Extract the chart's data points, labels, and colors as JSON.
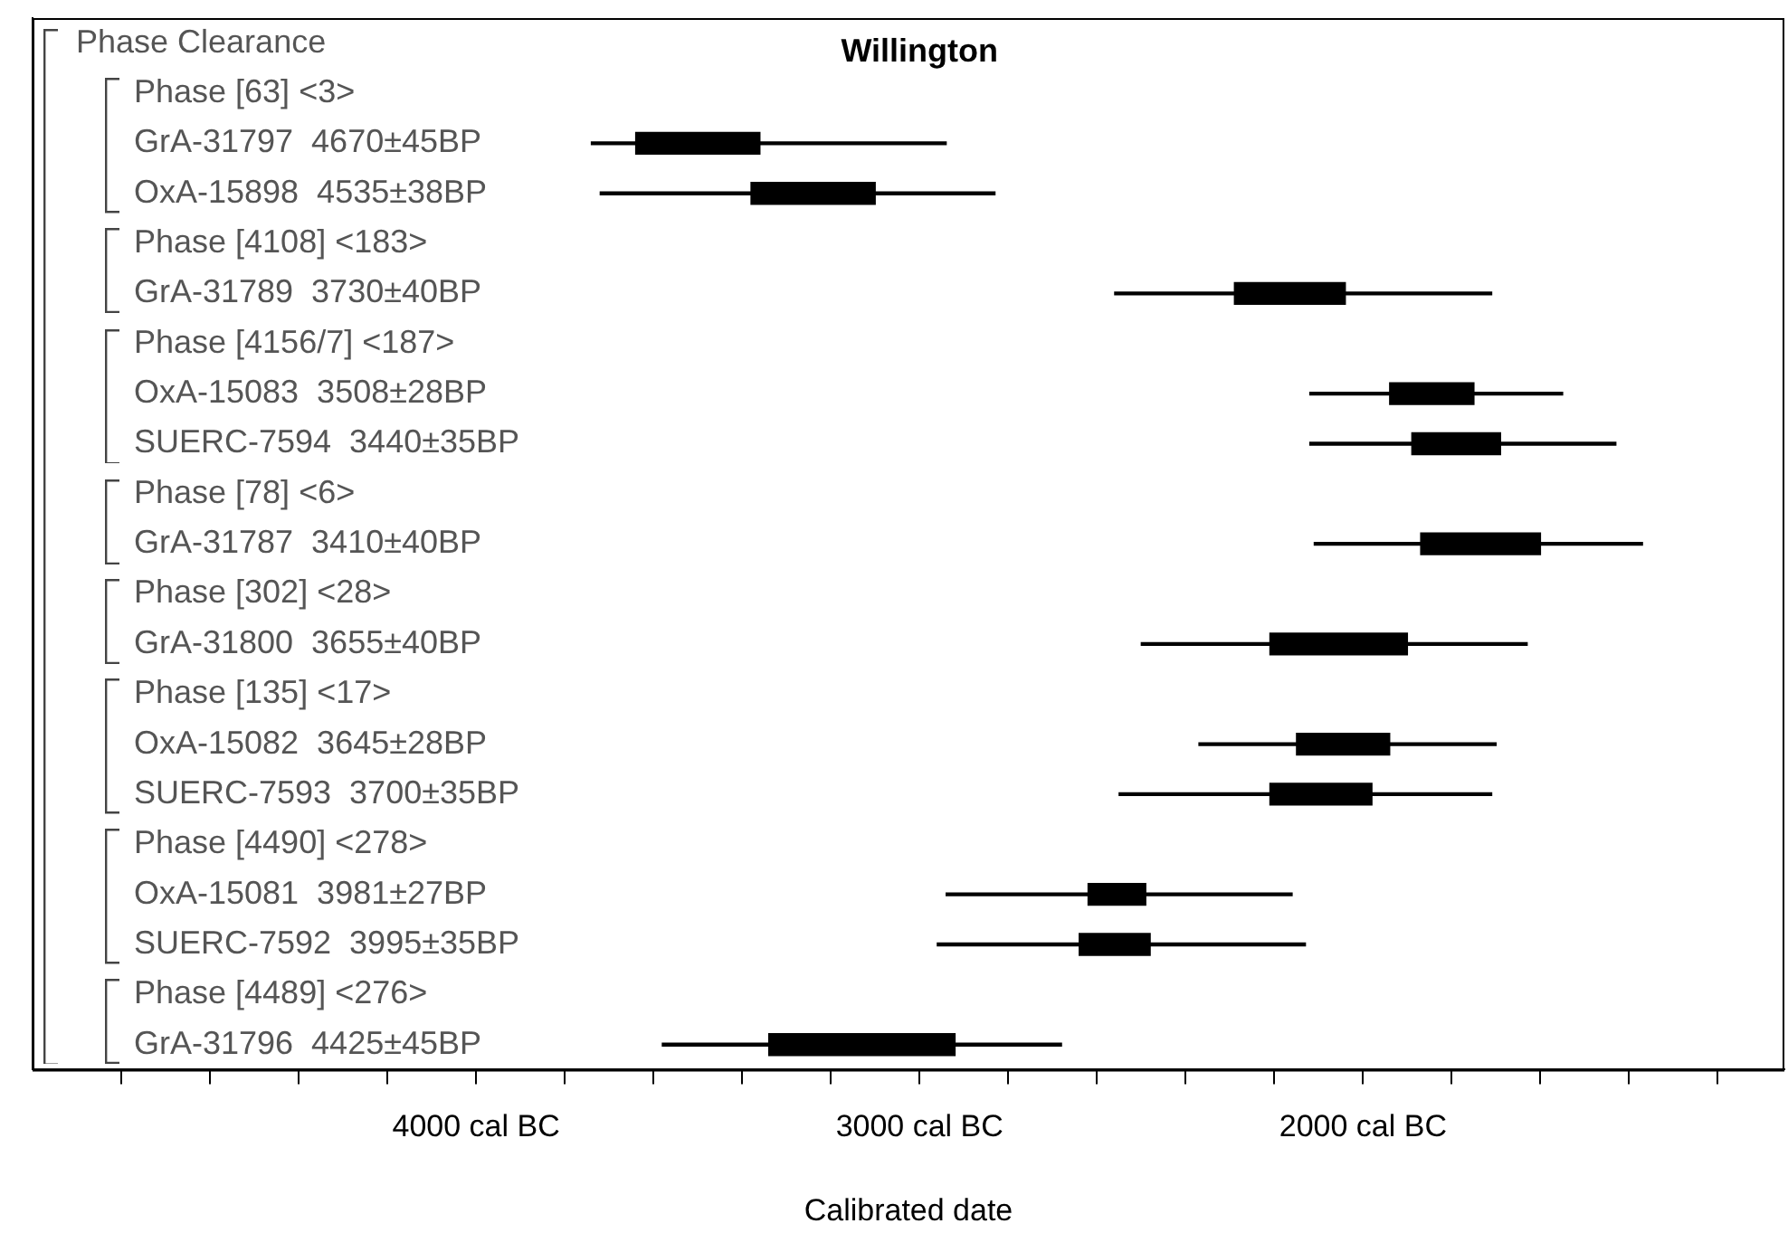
{
  "chart_data": {
    "type": "bar",
    "orientation": "horizontal",
    "title": "Willington",
    "xlabel": "Calibrated date",
    "categories": [
      "Phase Clearance",
      "Phase [63] <3>",
      "GrA-31797  4670±45BP",
      "OxA-15898  4535±38BP",
      "Phase [4108] <183>",
      "GrA-31789  3730±40BP",
      "Phase [4156/7] <187>",
      "OxA-15083  3508±28BP",
      "SUERC-7594  3440±35BP",
      "Phase [78] <6>",
      "GrA-31787  3410±40BP",
      "Phase [302] <28>",
      "GrA-31800  3655±40BP",
      "Phase [135] <17>",
      "OxA-15082  3645±28BP",
      "SUERC-7593  3700±35BP",
      "Phase [4490] <278>",
      "OxA-15081  3981±27BP",
      "SUERC-7592  3995±35BP",
      "Phase [4489] <276>",
      "GrA-31796  4425±45BP"
    ],
    "series": [
      {
        "color": "#000000",
        "base": [
          null,
          null,
          -3740,
          -3720,
          null,
          -2560,
          null,
          -2120,
          -2120,
          null,
          -2110,
          null,
          -2500,
          null,
          -2370,
          -2550,
          null,
          -2940,
          -2960,
          null,
          -3580
        ],
        "values": [
          null,
          null,
          800,
          890,
          null,
          850,
          null,
          570,
          690,
          null,
          740,
          null,
          870,
          null,
          670,
          840,
          null,
          780,
          830,
          null,
          900
        ]
      },
      {
        "color": "#000000",
        "base": [
          null,
          null,
          -3640,
          -3380,
          null,
          -2290,
          null,
          -1940,
          -1890,
          null,
          -1870,
          null,
          -2210,
          null,
          -2150,
          -2210,
          null,
          -2620,
          -2640,
          null,
          -3340
        ],
        "values": [
          null,
          null,
          280,
          280,
          null,
          250,
          null,
          190,
          200,
          null,
          270,
          null,
          310,
          null,
          210,
          230,
          null,
          130,
          160,
          null,
          420
        ]
      }
    ],
    "xlim": [
      -5000,
      -1050
    ],
    "xticks": [
      {
        "value": -4800,
        "label": null
      },
      {
        "value": -4600,
        "label": null
      },
      {
        "value": -4400,
        "label": null
      },
      {
        "value": -4200,
        "label": null
      },
      {
        "value": -4000,
        "label": "4000 cal BC"
      },
      {
        "value": -3800,
        "label": null
      },
      {
        "value": -3600,
        "label": null
      },
      {
        "value": -3400,
        "label": null
      },
      {
        "value": -3200,
        "label": null
      },
      {
        "value": -3000,
        "label": "3000 cal BC"
      },
      {
        "value": -2800,
        "label": null
      },
      {
        "value": -2600,
        "label": null
      },
      {
        "value": -2400,
        "label": null
      },
      {
        "value": -2200,
        "label": null
      },
      {
        "value": -2000,
        "label": "2000 cal BC"
      },
      {
        "value": -1800,
        "label": null
      },
      {
        "value": -1600,
        "label": null
      },
      {
        "value": -1400,
        "label": null
      },
      {
        "value": -1200,
        "label": null
      }
    ]
  }
}
